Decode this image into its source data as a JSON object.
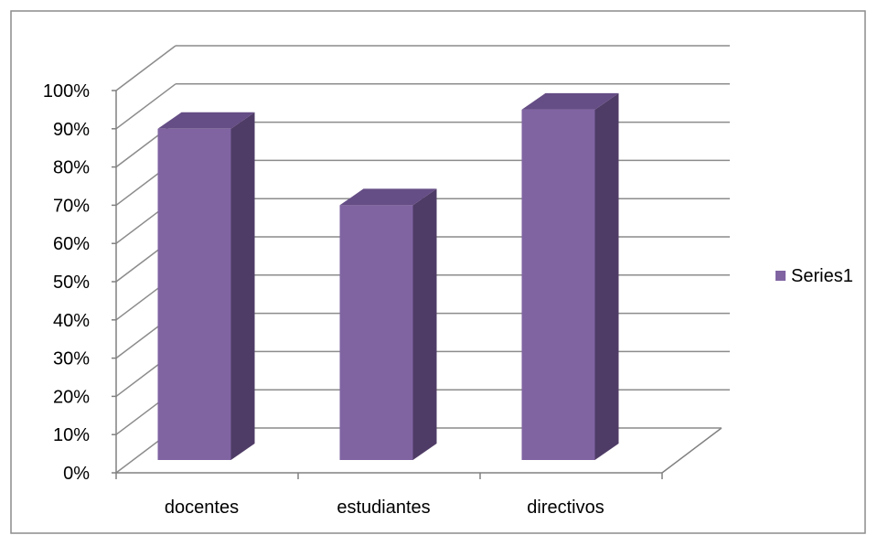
{
  "chart_data": {
    "type": "bar",
    "categories": [
      "docentes",
      "estudiantes",
      "directivos"
    ],
    "series": [
      {
        "name": "Series1",
        "values": [
          0.9,
          0.7,
          0.95
        ]
      }
    ],
    "yticks": [
      "0%",
      "10%",
      "20%",
      "30%",
      "40%",
      "50%",
      "60%",
      "70%",
      "80%",
      "90%",
      "100%"
    ],
    "ylim": [
      0,
      1
    ],
    "grid": true,
    "legend": "right",
    "three_d": true,
    "colors": {
      "bar_front": "#8064a2",
      "bar_side": "#4f3c66",
      "bar_top": "#654d85",
      "grid": "#8c8c8c",
      "axis": "#808080",
      "frame": "#8c8c8c",
      "text": "#000000"
    }
  }
}
